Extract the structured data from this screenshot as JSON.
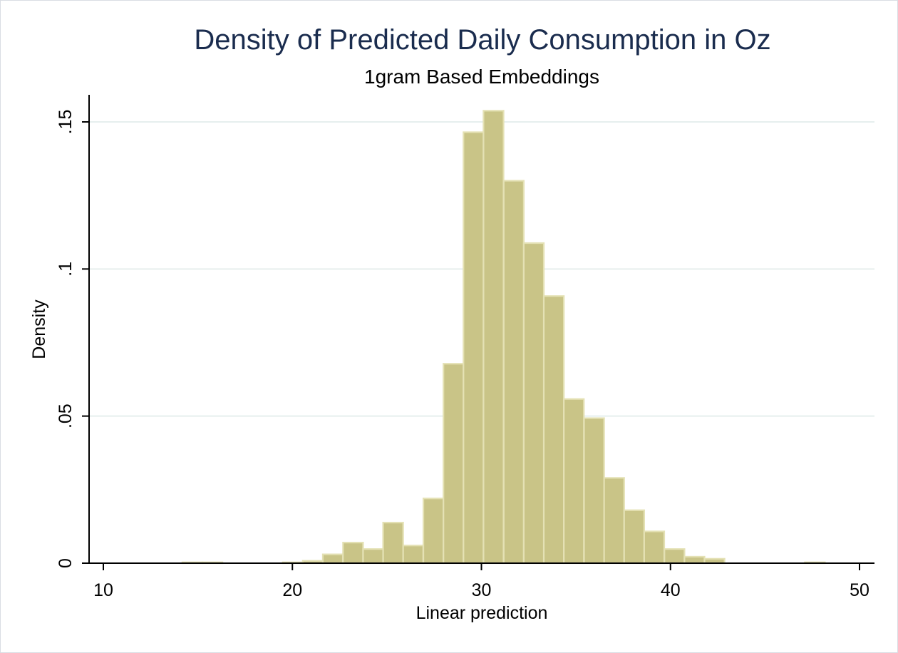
{
  "chart_data": {
    "type": "bar",
    "title": "Density of Predicted Daily Consumption in Oz",
    "subtitle": "1gram Based Embeddings",
    "xlabel": "Linear prediction",
    "ylabel": "Density",
    "xlim": [
      10,
      50
    ],
    "ylim": [
      0,
      0.155
    ],
    "xticks": [
      {
        "value": 10,
        "label": "10"
      },
      {
        "value": 20,
        "label": "20"
      },
      {
        "value": 30,
        "label": "30"
      },
      {
        "value": 40,
        "label": "40"
      },
      {
        "value": 50,
        "label": "50"
      }
    ],
    "yticks": [
      {
        "value": 0,
        "label": "0"
      },
      {
        "value": 0.05,
        "label": ".05"
      },
      {
        "value": 0.1,
        "label": ".1"
      },
      {
        "value": 0.15,
        "label": ".15"
      }
    ],
    "grid": "horizontal",
    "bin_width": 1.06,
    "bins": [
      {
        "start": 14.18,
        "density": 0.0003
      },
      {
        "start": 15.24,
        "density": 0.0003
      },
      {
        "start": 19.49,
        "density": 0.0003
      },
      {
        "start": 20.55,
        "density": 0.0008
      },
      {
        "start": 21.61,
        "density": 0.003
      },
      {
        "start": 22.68,
        "density": 0.007
      },
      {
        "start": 23.74,
        "density": 0.0048
      },
      {
        "start": 24.8,
        "density": 0.0138
      },
      {
        "start": 25.86,
        "density": 0.006
      },
      {
        "start": 26.93,
        "density": 0.022
      },
      {
        "start": 27.99,
        "density": 0.0678
      },
      {
        "start": 29.05,
        "density": 0.1465
      },
      {
        "start": 30.11,
        "density": 0.1538
      },
      {
        "start": 31.18,
        "density": 0.13
      },
      {
        "start": 32.24,
        "density": 0.1088
      },
      {
        "start": 33.3,
        "density": 0.0908
      },
      {
        "start": 34.36,
        "density": 0.0558
      },
      {
        "start": 35.43,
        "density": 0.0493
      },
      {
        "start": 36.49,
        "density": 0.029
      },
      {
        "start": 37.55,
        "density": 0.018
      },
      {
        "start": 38.61,
        "density": 0.0108
      },
      {
        "start": 39.68,
        "density": 0.0048
      },
      {
        "start": 40.74,
        "density": 0.0022
      },
      {
        "start": 41.8,
        "density": 0.0015
      },
      {
        "start": 47.11,
        "density": 0.0003
      }
    ],
    "colors": {
      "bar_fill": "#c9c487",
      "bar_stroke": "#e4e1b4",
      "grid": "#e6efee",
      "axis": "#000000",
      "title": "#1a2c4e"
    }
  }
}
